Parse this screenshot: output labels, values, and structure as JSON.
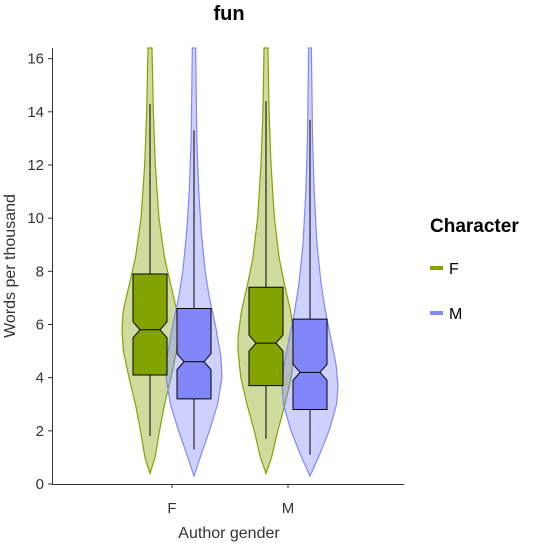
{
  "chart_data": {
    "type": "violin",
    "title": "fun",
    "xlabel": "Author gender",
    "ylabel": "Words per thousand",
    "categories": [
      "F",
      "M"
    ],
    "ylim": [
      0,
      16.4
    ],
    "yticks": [
      0,
      2,
      4,
      6,
      8,
      10,
      12,
      14,
      16
    ],
    "legend": {
      "title": "Character",
      "position": "right",
      "entries": [
        {
          "label": "F",
          "color": "#83A300"
        },
        {
          "label": "M",
          "color": "#8187FB"
        }
      ]
    },
    "series": [
      {
        "name": "F",
        "color": "#83A300",
        "groups": [
          {
            "category": "F",
            "box": {
              "q1": 4.1,
              "median": 5.8,
              "q3": 7.9,
              "notch_low": 5.5,
              "notch_high": 6.1,
              "whisker_low": 1.8,
              "whisker_high": 14.3
            },
            "violin": {
              "y_min": 0.4,
              "y_max": 16.4,
              "profile": [
                [
                  0.4,
                  0.0
                ],
                [
                  1.0,
                  0.18
                ],
                [
                  2.0,
                  0.34
                ],
                [
                  3.0,
                  0.52
                ],
                [
                  4.0,
                  0.75
                ],
                [
                  5.0,
                  0.95
                ],
                [
                  5.8,
                  1.0
                ],
                [
                  6.5,
                  0.96
                ],
                [
                  7.5,
                  0.74
                ],
                [
                  8.5,
                  0.52
                ],
                [
                  10.0,
                  0.32
                ],
                [
                  12.0,
                  0.19
                ],
                [
                  14.0,
                  0.12
                ],
                [
                  16.4,
                  0.07
                ]
              ]
            }
          },
          {
            "category": "M",
            "box": {
              "q1": 3.7,
              "median": 5.3,
              "q3": 7.4,
              "notch_low": 5.0,
              "notch_high": 5.6,
              "whisker_low": 1.7,
              "whisker_high": 14.4
            },
            "violin": {
              "y_min": 0.4,
              "y_max": 16.4,
              "profile": [
                [
                  0.4,
                  0.0
                ],
                [
                  1.0,
                  0.2
                ],
                [
                  2.0,
                  0.42
                ],
                [
                  3.0,
                  0.68
                ],
                [
                  4.0,
                  0.9
                ],
                [
                  5.0,
                  1.0
                ],
                [
                  5.5,
                  1.0
                ],
                [
                  6.5,
                  0.88
                ],
                [
                  7.5,
                  0.66
                ],
                [
                  8.5,
                  0.47
                ],
                [
                  10.0,
                  0.3
                ],
                [
                  12.0,
                  0.18
                ],
                [
                  14.0,
                  0.11
                ],
                [
                  16.4,
                  0.07
                ]
              ]
            }
          }
        ]
      },
      {
        "name": "M",
        "color": "#8187FB",
        "groups": [
          {
            "category": "F",
            "box": {
              "q1": 3.2,
              "median": 4.6,
              "q3": 6.6,
              "notch_low": 4.3,
              "notch_high": 4.9,
              "whisker_low": 1.3,
              "whisker_high": 13.3
            },
            "violin": {
              "y_min": 0.3,
              "y_max": 16.4,
              "profile": [
                [
                  0.3,
                  0.0
                ],
                [
                  1.0,
                  0.22
                ],
                [
                  2.0,
                  0.55
                ],
                [
                  3.0,
                  0.84
                ],
                [
                  4.0,
                  1.0
                ],
                [
                  4.8,
                  0.96
                ],
                [
                  6.0,
                  0.76
                ],
                [
                  7.0,
                  0.55
                ],
                [
                  8.0,
                  0.4
                ],
                [
                  9.5,
                  0.26
                ],
                [
                  11.0,
                  0.17
                ],
                [
                  13.0,
                  0.1
                ],
                [
                  16.4,
                  0.06
                ]
              ]
            }
          },
          {
            "category": "M",
            "box": {
              "q1": 2.8,
              "median": 4.2,
              "q3": 6.2,
              "notch_low": 3.9,
              "notch_high": 4.5,
              "whisker_low": 1.1,
              "whisker_high": 13.7
            },
            "violin": {
              "y_min": 0.3,
              "y_max": 16.4,
              "profile": [
                [
                  0.3,
                  0.0
                ],
                [
                  1.0,
                  0.3
                ],
                [
                  2.0,
                  0.68
                ],
                [
                  3.0,
                  0.95
                ],
                [
                  3.7,
                  1.0
                ],
                [
                  4.5,
                  0.93
                ],
                [
                  5.5,
                  0.74
                ],
                [
                  6.5,
                  0.55
                ],
                [
                  7.5,
                  0.4
                ],
                [
                  9.0,
                  0.25
                ],
                [
                  11.0,
                  0.15
                ],
                [
                  13.0,
                  0.09
                ],
                [
                  16.4,
                  0.05
                ]
              ]
            }
          }
        ]
      }
    ]
  }
}
